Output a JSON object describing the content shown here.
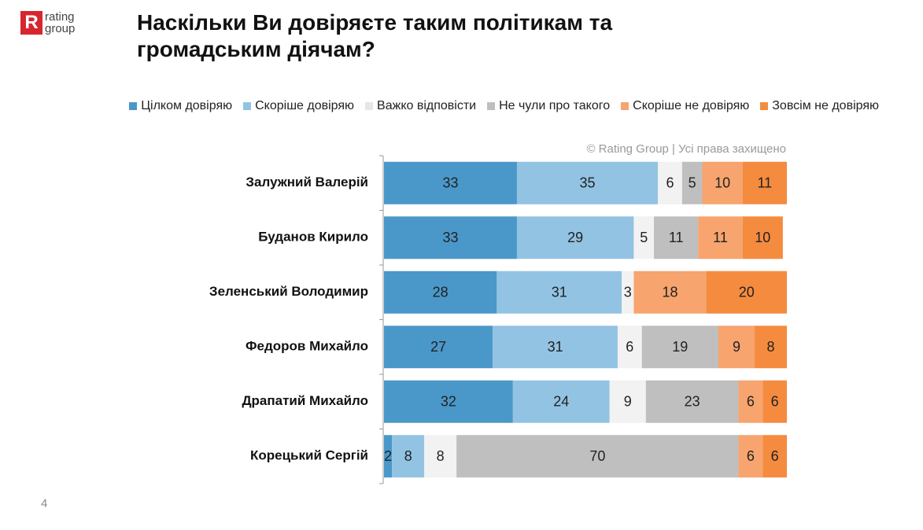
{
  "logo": {
    "letter": "R",
    "line1": "rating",
    "line2": "group"
  },
  "page_number": "4",
  "chart_data": {
    "type": "stacked-bar-horizontal",
    "title": "Наскільки Ви довіряєте таким політикам та громадським діячам?",
    "watermark": "© Rating Group | Усі права захищено",
    "categories": [
      "Залужний Валерій",
      "Буданов Кирило",
      "Зеленський Володимир",
      "Федоров Михайло",
      "Драпатий Михайло",
      "Корецький Сергій"
    ],
    "series": [
      {
        "name": "Цілком довіряю",
        "color": "#4a98c9",
        "values": [
          33,
          33,
          28,
          27,
          32,
          2
        ]
      },
      {
        "name": "Скоріше довіряю",
        "color": "#92c3e3",
        "values": [
          35,
          29,
          31,
          31,
          24,
          8
        ]
      },
      {
        "name": "Важко відповісти",
        "color": "#f2f2f2",
        "values": [
          6,
          5,
          3,
          6,
          9,
          8
        ]
      },
      {
        "name": "Не чули про такого",
        "color": "#bfbfbf",
        "values": [
          5,
          11,
          null,
          19,
          23,
          70
        ]
      },
      {
        "name": "Скоріше не довіряю",
        "color": "#f7a46e",
        "values": [
          10,
          11,
          18,
          9,
          6,
          6
        ]
      },
      {
        "name": "Зовсім не довіряю",
        "color": "#f58b3f",
        "values": [
          11,
          10,
          20,
          8,
          6,
          6
        ]
      }
    ],
    "xlim": [
      0,
      100
    ]
  }
}
